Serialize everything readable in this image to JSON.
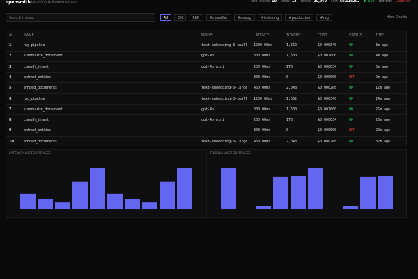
{
  "header": {
    "brand": "opensmith",
    "tagline": "Local-first LLM pipeline tracer",
    "stats": [
      {
        "label": "total traces",
        "value": "10"
      },
      {
        "label": "steps",
        "value": "12"
      },
      {
        "label": "tokens",
        "value": "10,960"
      },
      {
        "label": "cost",
        "value": "$0.015202"
      }
    ],
    "live": "LIVE",
    "refresh": "Refresh",
    "clear": "Clear All"
  },
  "toolbar": {
    "search_placeholder": "Search traces...",
    "filters": [
      "All",
      "OK",
      "ERR",
      "#classifier",
      "#debug",
      "#indexing",
      "#production",
      "#rag"
    ],
    "active_filter": 0,
    "hide_charts": "Hide Charts"
  },
  "table": {
    "columns": [
      "#",
      "NAME",
      "MODEL",
      "LATENCY",
      "TOKENS",
      "COST",
      "STATUS",
      "TIME"
    ],
    "status_colors": {
      "OK": "#22c55e",
      "ERR": "#ef4444"
    },
    "rows": [
      [
        "1",
        "rag_pipeline",
        "text-embedding-3-small",
        "1200.00ms",
        "1,662",
        "$0.000340",
        "OK",
        "3m ago"
      ],
      [
        "2",
        "summarize_document",
        "gpt-4o",
        "800.00ms",
        "1,600",
        "$0.007000",
        "OK",
        "4m ago"
      ],
      [
        "3",
        "classify_intent",
        "gpt-4o-mini",
        "200.00ms",
        "170",
        "$0.000034",
        "OK",
        "6m ago"
      ],
      [
        "4",
        "extract_entities",
        null,
        "300.00ms",
        "0",
        "$0.000000",
        "ERR",
        "9m ago"
      ],
      [
        "5",
        "embed_documents",
        "text-embedding-3-large",
        "450.00ms",
        "2,048",
        "$0.000266",
        "OK",
        "12m ago"
      ],
      [
        "6",
        "rag_pipeline",
        "text-embedding-3-small",
        "1200.00ms",
        "1,662",
        "$0.000340",
        "OK",
        "24m ago"
      ],
      [
        "7",
        "summarize_document",
        "gpt-4o",
        "800.00ms",
        "1,600",
        "$0.007000",
        "OK",
        "25m ago"
      ],
      [
        "8",
        "classify_intent",
        "gpt-4o-mini",
        "200.00ms",
        "170",
        "$0.000034",
        "OK",
        "26m ago"
      ],
      [
        "9",
        "extract_entities",
        null,
        "300.00ms",
        "0",
        "$0.000000",
        "ERR",
        "29m ago"
      ],
      [
        "10",
        "embed_documents",
        "text-embedding-3-large",
        "450.00ms",
        "2,048",
        "$0.000266",
        "OK",
        "32m ago"
      ]
    ]
  },
  "charts": [
    {
      "type": "bar",
      "title": "LATENCY: LAST 20 TRACES",
      "color": "#6366f1",
      "values": [
        450,
        300,
        200,
        800,
        1200,
        450,
        300,
        200,
        800,
        1200
      ]
    },
    {
      "type": "bar",
      "title": "TOKENS: LAST 20 TRACES",
      "color": "#6366f1",
      "values": [
        2048,
        0,
        170,
        1600,
        1662,
        2048,
        0,
        170,
        1600,
        1662
      ]
    }
  ]
}
